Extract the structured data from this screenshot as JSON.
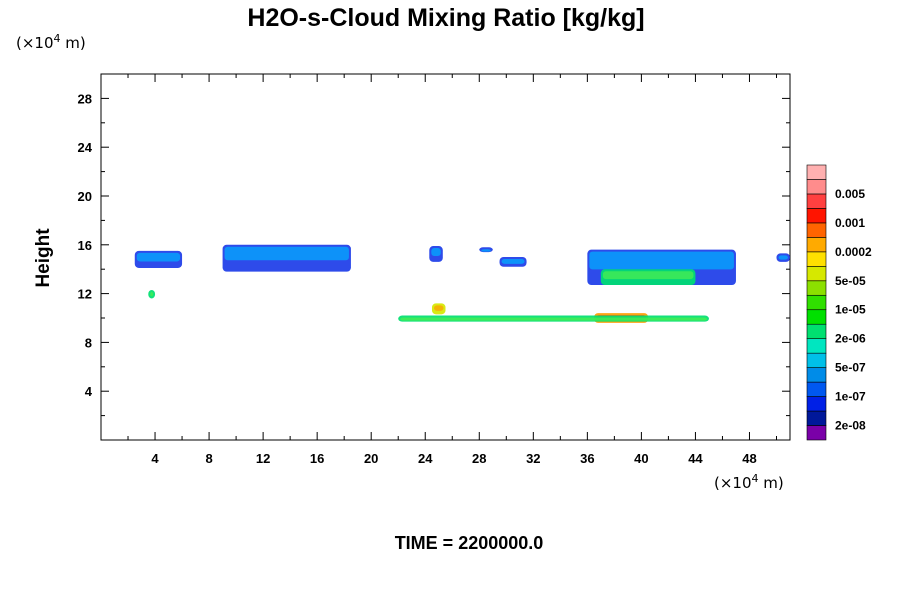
{
  "chart_data": {
    "type": "heatmap",
    "title": "H2O-s-Cloud Mixing Ratio [kg/kg]",
    "ylabel": "Height",
    "y_unit": "(×10",
    "y_unit_exp": "4",
    "y_unit_tail": " m)",
    "x_unit": "(×10",
    "x_unit_exp": "4",
    "x_unit_tail": " m)",
    "footer": "TIME = 2200000.0",
    "xlim": [
      0,
      51
    ],
    "ylim": [
      0,
      30
    ],
    "xticks": [
      4,
      8,
      12,
      16,
      20,
      24,
      28,
      32,
      36,
      40,
      44,
      48
    ],
    "yticks": [
      4,
      8,
      12,
      16,
      20,
      24,
      28
    ],
    "colorbar": {
      "colors": [
        "#7a00a8",
        "#00189a",
        "#0020e6",
        "#0058f0",
        "#008ce8",
        "#00c0e8",
        "#00e6c0",
        "#00e070",
        "#00e000",
        "#30e000",
        "#8ce000",
        "#d6e800",
        "#ffe000",
        "#ffaa00",
        "#ff6400",
        "#ff1400",
        "#ff4040",
        "#ff8c8c",
        "#ffb0b0"
      ],
      "labels": [
        "2e-08",
        "1e-07",
        "5e-07",
        "2e-06",
        "1e-05",
        "5e-05",
        "0.0002",
        "0.001",
        "0.005"
      ]
    },
    "cloud_regions": [
      {
        "x": [
          2.5,
          6.0
        ],
        "y": [
          14.1,
          15.5
        ],
        "level": "1e-07"
      },
      {
        "x": [
          9.0,
          18.5
        ],
        "y": [
          13.8,
          16.0
        ],
        "level": "1e-07"
      },
      {
        "x": [
          24.3,
          25.3
        ],
        "y": [
          14.6,
          15.9
        ],
        "level": "1e-07"
      },
      {
        "x": [
          28.0,
          29.0
        ],
        "y": [
          15.4,
          15.8
        ],
        "level": "1e-07"
      },
      {
        "x": [
          29.5,
          31.5
        ],
        "y": [
          14.2,
          15.0
        ],
        "level": "1e-07"
      },
      {
        "x": [
          36.0,
          47.0
        ],
        "y": [
          12.7,
          15.6
        ],
        "level": "1e-07"
      },
      {
        "x": [
          37.0,
          44.0
        ],
        "y": [
          12.7,
          14.0
        ],
        "level": "2e-06"
      },
      {
        "x": [
          50.0,
          51.0
        ],
        "y": [
          14.6,
          15.3
        ],
        "level": "1e-07"
      },
      {
        "x": [
          3.5,
          4.0
        ],
        "y": [
          11.6,
          12.3
        ],
        "level": "2e-06"
      },
      {
        "x": [
          24.5,
          25.5
        ],
        "y": [
          10.3,
          11.2
        ],
        "level": "5e-05"
      },
      {
        "x": [
          36.5,
          40.5
        ],
        "y": [
          9.6,
          10.4
        ],
        "level": "0.0002"
      },
      {
        "x": [
          22.0,
          45.0
        ],
        "y": [
          9.7,
          10.2
        ],
        "level": "2e-06"
      }
    ]
  }
}
